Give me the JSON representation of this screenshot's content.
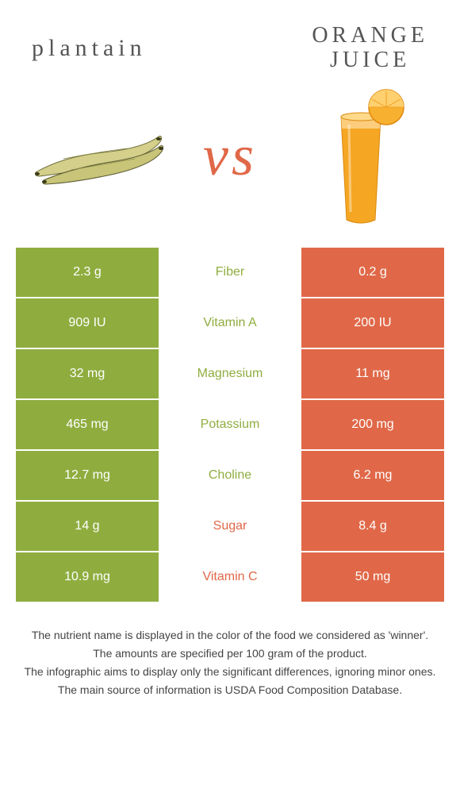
{
  "header": {
    "left_title": "plantain",
    "right_title": "ORANGE\nJUICE",
    "vs": "vs"
  },
  "colors": {
    "left_bg": "#8fad3f",
    "right_bg": "#e06848",
    "mid_left_text": "#8fad3f",
    "mid_right_text": "#e06848"
  },
  "table": {
    "rows": [
      {
        "left": "2.3 g",
        "label": "Fiber",
        "right": "0.2 g",
        "winner": "left"
      },
      {
        "left": "909 IU",
        "label": "Vitamin A",
        "right": "200 IU",
        "winner": "left"
      },
      {
        "left": "32 mg",
        "label": "Magnesium",
        "right": "11 mg",
        "winner": "left"
      },
      {
        "left": "465 mg",
        "label": "Potassium",
        "right": "200 mg",
        "winner": "left"
      },
      {
        "left": "12.7 mg",
        "label": "Choline",
        "right": "6.2 mg",
        "winner": "left"
      },
      {
        "left": "14 g",
        "label": "Sugar",
        "right": "8.4 g",
        "winner": "right"
      },
      {
        "left": "10.9 mg",
        "label": "Vitamin C",
        "right": "50 mg",
        "winner": "right"
      }
    ]
  },
  "footer": {
    "line1": "The nutrient name is displayed in the color of the food we considered as 'winner'.",
    "line2": "The amounts are specified per 100 gram of the product.",
    "line3": "The infographic aims to display only the significant differences, ignoring minor ones.",
    "line4": "The main source of information is USDA Food Composition Database."
  }
}
